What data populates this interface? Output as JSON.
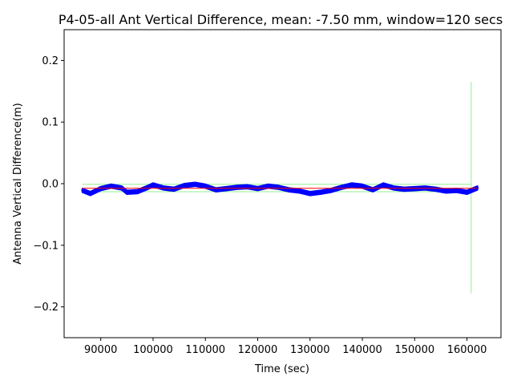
{
  "chart_data": {
    "type": "line",
    "title": "P4-05-all Ant Vertical Difference, mean: -7.50 mm, window=120 secs",
    "xlabel": "Time (sec)",
    "ylabel": "Antenna Vertical Difference(m)",
    "xlim": [
      83000,
      166500
    ],
    "ylim": [
      -0.25,
      0.25
    ],
    "xticks": [
      90000,
      100000,
      110000,
      120000,
      130000,
      140000,
      150000,
      160000
    ],
    "xtick_labels": [
      "90000",
      "100000",
      "110000",
      "120000",
      "130000",
      "140000",
      "150000",
      "160000"
    ],
    "yticks": [
      -0.2,
      -0.1,
      0.0,
      0.1,
      0.2
    ],
    "ytick_labels": [
      "−0.2",
      "−0.1",
      "0.0",
      "0.1",
      "0.2"
    ],
    "grid": false,
    "colors": {
      "raw": "#0000ff",
      "mean": "#ff0000",
      "window_bounds": "#90ee90"
    },
    "series": [
      {
        "role": "raw",
        "x": [
          86500,
          88000,
          90000,
          92000,
          94000,
          95000,
          97000,
          99000,
          100000,
          102000,
          104000,
          106000,
          108000,
          110000,
          112000,
          114000,
          116000,
          118000,
          120000,
          122000,
          124000,
          126000,
          128000,
          130000,
          132000,
          134000,
          136000,
          138000,
          140000,
          142000,
          144000,
          146000,
          148000,
          150000,
          152000,
          154000,
          156000,
          158000,
          160000,
          162000
        ],
        "y": [
          -0.011,
          -0.016,
          -0.008,
          -0.004,
          -0.007,
          -0.014,
          -0.013,
          -0.006,
          -0.002,
          -0.007,
          -0.009,
          -0.003,
          -0.001,
          -0.004,
          -0.01,
          -0.008,
          -0.006,
          -0.005,
          -0.008,
          -0.004,
          -0.006,
          -0.01,
          -0.012,
          -0.016,
          -0.014,
          -0.011,
          -0.006,
          -0.002,
          -0.004,
          -0.01,
          -0.002,
          -0.007,
          -0.009,
          -0.008,
          -0.007,
          -0.009,
          -0.012,
          -0.011,
          -0.014,
          -0.007
        ],
        "band": 0.003
      },
      {
        "role": "mean",
        "x": [
          86500,
          162000
        ],
        "y": [
          -0.0075,
          -0.0075
        ]
      },
      {
        "role": "window_upper",
        "x": [
          86500,
          160800
        ],
        "y": [
          -0.001,
          -0.001
        ]
      },
      {
        "role": "window_lower",
        "x": [
          86500,
          160800
        ],
        "y": [
          -0.013,
          -0.013
        ]
      },
      {
        "role": "window_spike",
        "x": [
          160800,
          160800
        ],
        "y": [
          -0.178,
          0.165
        ]
      }
    ]
  }
}
